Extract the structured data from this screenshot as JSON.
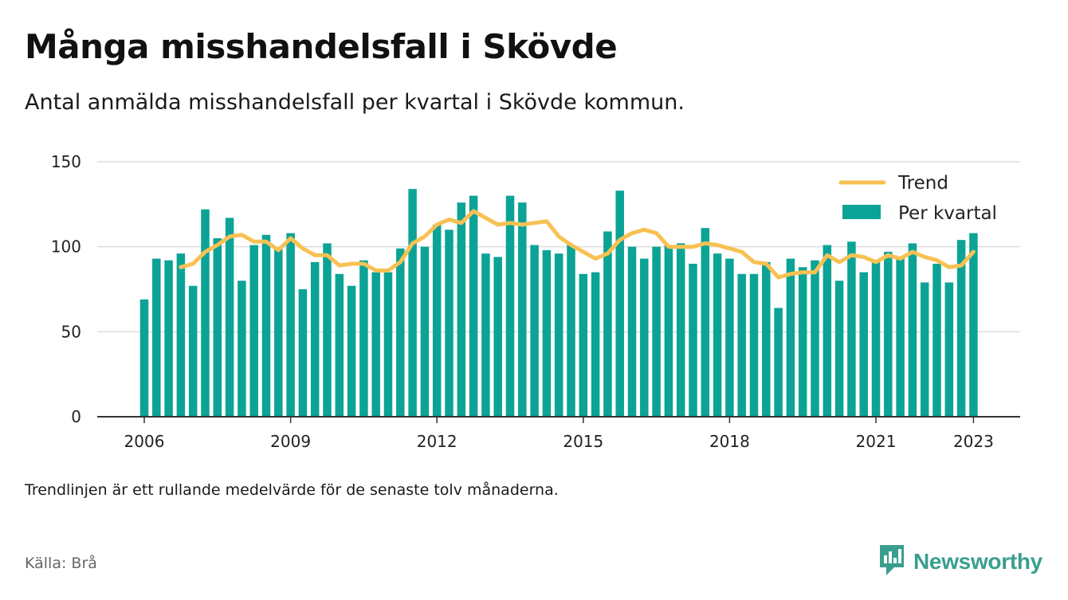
{
  "title": "Många misshandelsfall i Skövde",
  "subtitle": "Antal anmälda misshandelsfall per kvartal i Skövde kommun.",
  "footnote": "Trendlinjen är ett rullande medelvärde för de senaste tolv månaderna.",
  "source": "Källa: Brå",
  "brand": {
    "name": "Newsworthy",
    "icon": "newsworthy-logo-icon",
    "color": "#3a9e8f"
  },
  "colors": {
    "bar": "#0ba396",
    "trend": "#f8c153",
    "grid": "#dddddd",
    "axis": "#333333"
  },
  "chart_data": {
    "type": "bar",
    "x_start": "2006 Q1",
    "interval": "quarter",
    "ylim": [
      0,
      150
    ],
    "yticks": [
      0,
      50,
      100,
      150
    ],
    "xticks": [
      "2006",
      "2009",
      "2012",
      "2015",
      "2018",
      "2021",
      "2023"
    ],
    "legend": {
      "position": "top-right",
      "entries": [
        "Trend",
        "Per kvartal"
      ]
    },
    "grid": "horizontal",
    "series": [
      {
        "name": "Per kvartal",
        "type": "bar",
        "values": [
          69,
          93,
          92,
          96,
          77,
          122,
          105,
          117,
          80,
          101,
          107,
          99,
          108,
          75,
          91,
          102,
          84,
          77,
          92,
          85,
          85,
          99,
          134,
          100,
          113,
          110,
          126,
          130,
          96,
          94,
          130,
          126,
          101,
          98,
          96,
          101,
          84,
          85,
          109,
          133,
          100,
          93,
          100,
          101,
          102,
          90,
          111,
          96,
          93,
          84,
          84,
          91,
          64,
          93,
          88,
          92,
          101,
          80,
          103,
          85,
          91,
          97,
          93,
          102,
          79,
          90,
          79,
          104,
          108
        ]
      },
      {
        "name": "Trend",
        "type": "line",
        "values": [
          null,
          null,
          null,
          88,
          90,
          97,
          101,
          106,
          107,
          103,
          103,
          98,
          105,
          99,
          95,
          95,
          89,
          90,
          90,
          86,
          86,
          91,
          102,
          106,
          113,
          116,
          114,
          121,
          117,
          113,
          114,
          113,
          114,
          115,
          106,
          101,
          97,
          93,
          96,
          104,
          108,
          110,
          108,
          100,
          100,
          100,
          102,
          101,
          99,
          97,
          91,
          90,
          82,
          84,
          85,
          85,
          95,
          91,
          95,
          94,
          91,
          95,
          93,
          97,
          94,
          92,
          88,
          89,
          97
        ]
      }
    ]
  }
}
